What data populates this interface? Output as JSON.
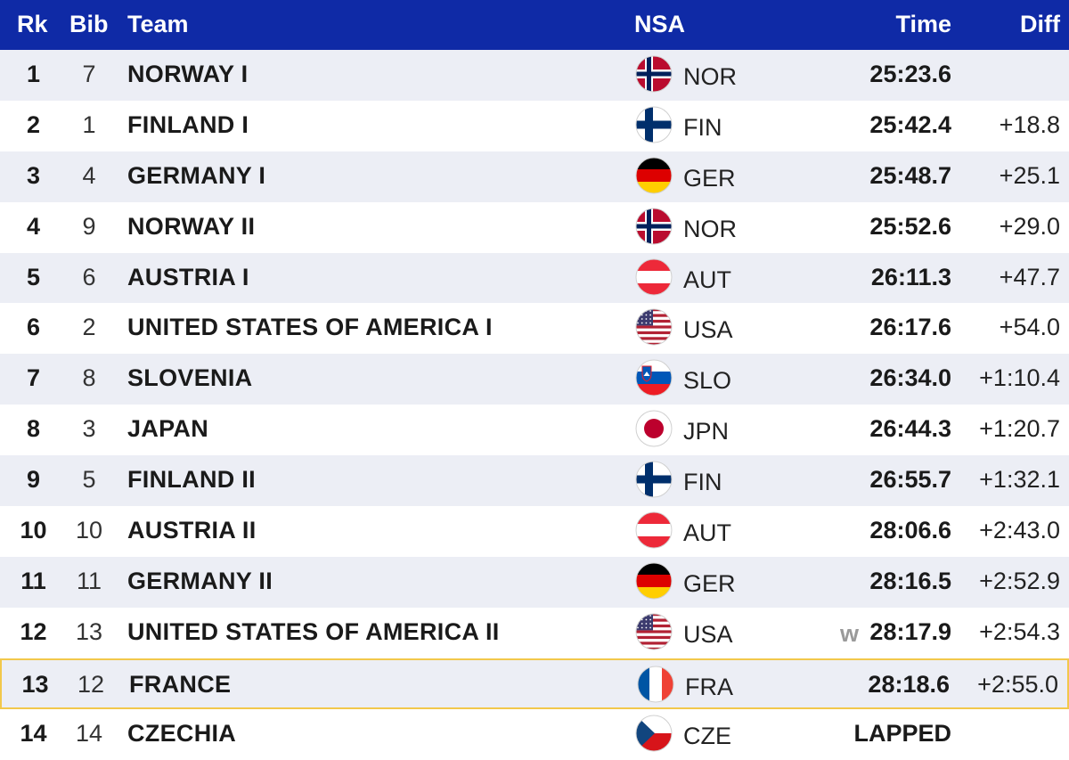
{
  "header": {
    "rk": "Rk",
    "bib": "Bib",
    "team": "Team",
    "nsa": "NSA",
    "time": "Time",
    "diff": "Diff"
  },
  "rows": [
    {
      "rk": "1",
      "bib": "7",
      "team": "NORWAY I",
      "nsa": "NOR",
      "flag": "norway-flag-icon",
      "note": "",
      "time": "25:23.6",
      "diff": ""
    },
    {
      "rk": "2",
      "bib": "1",
      "team": "FINLAND I",
      "nsa": "FIN",
      "flag": "finland-flag-icon",
      "note": "",
      "time": "25:42.4",
      "diff": "+18.8"
    },
    {
      "rk": "3",
      "bib": "4",
      "team": "GERMANY I",
      "nsa": "GER",
      "flag": "germany-flag-icon",
      "note": "",
      "time": "25:48.7",
      "diff": "+25.1"
    },
    {
      "rk": "4",
      "bib": "9",
      "team": "NORWAY II",
      "nsa": "NOR",
      "flag": "norway-flag-icon",
      "note": "",
      "time": "25:52.6",
      "diff": "+29.0"
    },
    {
      "rk": "5",
      "bib": "6",
      "team": "AUSTRIA I",
      "nsa": "AUT",
      "flag": "austria-flag-icon",
      "note": "",
      "time": "26:11.3",
      "diff": "+47.7"
    },
    {
      "rk": "6",
      "bib": "2",
      "team": "UNITED STATES OF AMERICA I",
      "nsa": "USA",
      "flag": "usa-flag-icon",
      "note": "",
      "time": "26:17.6",
      "diff": "+54.0"
    },
    {
      "rk": "7",
      "bib": "8",
      "team": "SLOVENIA",
      "nsa": "SLO",
      "flag": "slovenia-flag-icon",
      "note": "",
      "time": "26:34.0",
      "diff": "+1:10.4"
    },
    {
      "rk": "8",
      "bib": "3",
      "team": "JAPAN",
      "nsa": "JPN",
      "flag": "japan-flag-icon",
      "note": "",
      "time": "26:44.3",
      "diff": "+1:20.7"
    },
    {
      "rk": "9",
      "bib": "5",
      "team": "FINLAND II",
      "nsa": "FIN",
      "flag": "finland-flag-icon",
      "note": "",
      "time": "26:55.7",
      "diff": "+1:32.1"
    },
    {
      "rk": "10",
      "bib": "10",
      "team": "AUSTRIA II",
      "nsa": "AUT",
      "flag": "austria-flag-icon",
      "note": "",
      "time": "28:06.6",
      "diff": "+2:43.0"
    },
    {
      "rk": "11",
      "bib": "11",
      "team": "GERMANY II",
      "nsa": "GER",
      "flag": "germany-flag-icon",
      "note": "",
      "time": "28:16.5",
      "diff": "+2:52.9"
    },
    {
      "rk": "12",
      "bib": "13",
      "team": "UNITED STATES OF AMERICA II",
      "nsa": "USA",
      "flag": "usa-flag-icon",
      "note": "w",
      "time": "28:17.9",
      "diff": "+2:54.3"
    },
    {
      "rk": "13",
      "bib": "12",
      "team": "FRANCE",
      "nsa": "FRA",
      "flag": "france-flag-icon",
      "note": "",
      "time": "28:18.6",
      "diff": "+2:55.0"
    },
    {
      "rk": "14",
      "bib": "14",
      "team": "CZECHIA",
      "nsa": "CZE",
      "flag": "czechia-flag-icon",
      "note": "",
      "time": "LAPPED",
      "diff": ""
    }
  ],
  "highlighted_row": "13",
  "colors": {
    "header_bg": "#0f2aa6",
    "alt_row_bg": "#eceef5",
    "highlight_border": "#f2c84b"
  }
}
